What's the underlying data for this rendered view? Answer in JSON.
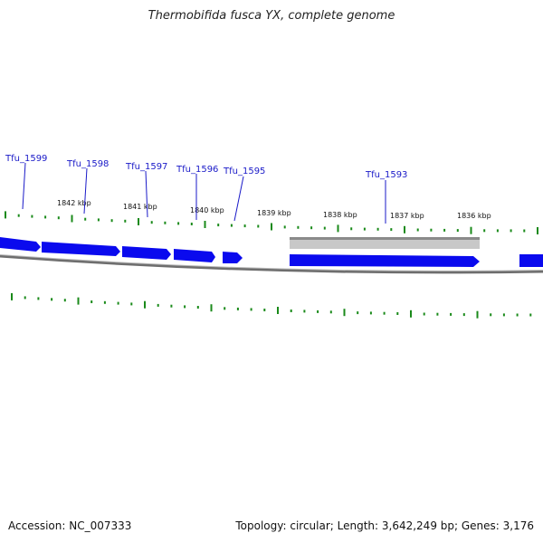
{
  "title": "Thermobifida fusca YX, complete genome",
  "accession_text": "Accession: NC_007333",
  "summary_text": "Topology: circular; Length: 3,642,249 bp; Genes: 3,176",
  "colors": {
    "gene_fill": "#0a0aee",
    "gene_label": "#1a1ac8",
    "highlight_gene": "#c8c8c8",
    "backbone": "#808080",
    "tick": "#1a8a1a"
  },
  "gene_labels": [
    "Tfu_1599",
    "Tfu_1598",
    "Tfu_1597",
    "Tfu_1596",
    "Tfu_1595",
    "Tfu_1593"
  ],
  "kbp_labels": [
    "1842 kbp",
    "1841 kbp",
    "1840 kbp",
    "1839 kbp",
    "1838 kbp",
    "1837 kbp",
    "1836 kbp"
  ]
}
